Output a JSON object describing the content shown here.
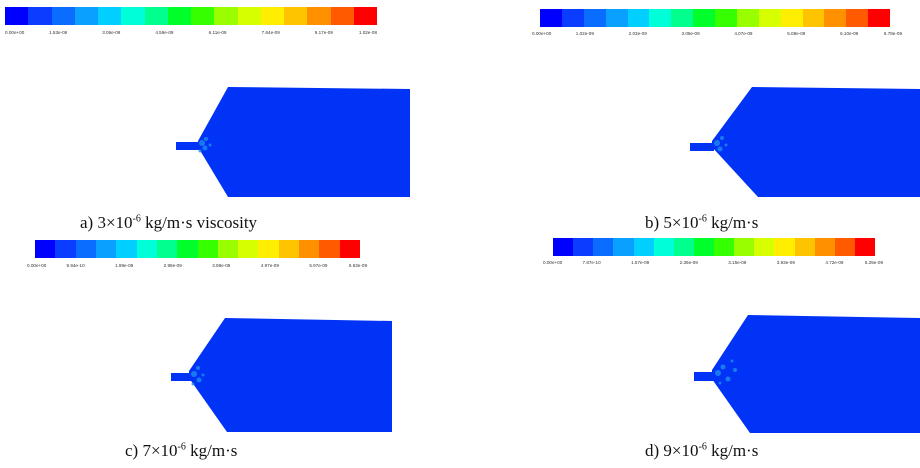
{
  "colormap": [
    "#0000ff",
    "#0a3dff",
    "#0b6dff",
    "#0aa0ff",
    "#00cfff",
    "#00ffd8",
    "#00ff8c",
    "#00ff2a",
    "#36ff00",
    "#99ff00",
    "#d6ff00",
    "#ffee00",
    "#ffc400",
    "#ff9000",
    "#ff5a00",
    "#ff0000"
  ],
  "domain_color": "#0033f5",
  "panels": [
    {
      "ticks": [
        "0.00e+00",
        "1.53e-09",
        "3.06e-09",
        "4.59e-09",
        "6.11e-09",
        "7.64e-09",
        "9.17e-09",
        "1.02e-08"
      ],
      "caption": {
        "prefix": "a) 3×10",
        "exp": "-6",
        "suffix": " kg/m·s viscosity"
      }
    },
    {
      "ticks": [
        "0.00e+00",
        "1.02e-09",
        "2.03e-09",
        "3.05e-09",
        "4.07e-09",
        "5.08e-09",
        "6.10e-09",
        "6.78e-09"
      ],
      "caption": {
        "prefix": "b) 5×10",
        "exp": "-6",
        "suffix": " kg/m·s"
      }
    },
    {
      "ticks": [
        "0.00e+00",
        "9.94e-10",
        "1.99e-09",
        "2.98e-09",
        "3.98e-09",
        "4.97e-09",
        "5.97e-09",
        "6.63e-09"
      ],
      "caption": {
        "prefix": "c) 7×10",
        "exp": "-6",
        "suffix": " kg/m·s"
      }
    },
    {
      "ticks": [
        "0.00e+00",
        "7.87e-10",
        "1.57e-09",
        "2.36e-09",
        "3.15e-09",
        "3.93e-09",
        "4.72e-09",
        "5.25e-09"
      ],
      "caption": {
        "prefix": "d) 9×10",
        "exp": "-6",
        "suffix": " kg/m·s"
      }
    }
  ]
}
